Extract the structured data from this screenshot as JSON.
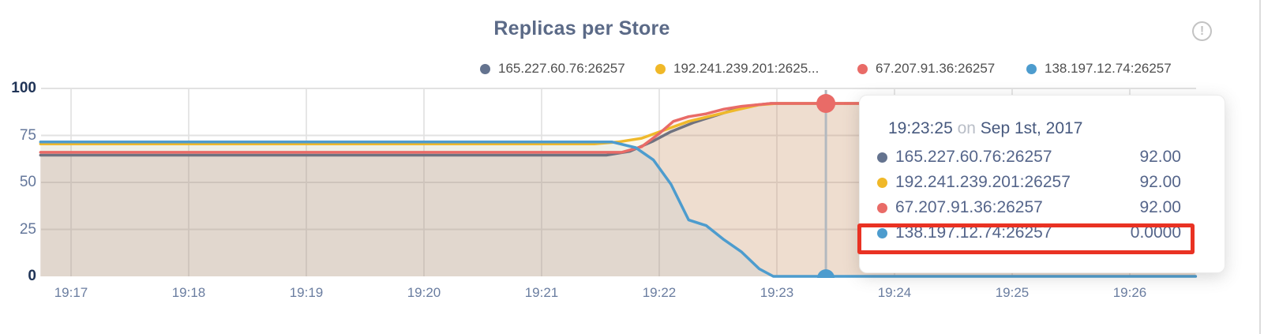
{
  "title": "Replicas per Store",
  "info_icon_glyph": "!",
  "legend": [
    {
      "label": "165.227.60.76:26257"
    },
    {
      "label": "192.241.239.201:2625..."
    },
    {
      "label": "67.207.91.36:26257"
    },
    {
      "label": "138.197.12.74:26257"
    }
  ],
  "tooltip": {
    "time": "19:23:25",
    "conjunction": "on",
    "date": "Sep 1st, 2017",
    "rows": [
      {
        "name": "165.227.60.76:26257",
        "value": "92.00"
      },
      {
        "name": "192.241.239.201:26257",
        "value": "92.00"
      },
      {
        "name": "67.207.91.36:26257",
        "value": "92.00"
      },
      {
        "name": "138.197.12.74:26257",
        "value": "0.0000"
      }
    ],
    "highlighted_row": 3,
    "highlight_color": "#e93223"
  },
  "chart_data": {
    "type": "area",
    "title": "Replicas per Store",
    "xlabel": "",
    "ylabel": "",
    "ylim": [
      0,
      100
    ],
    "y_ticks": [
      0,
      25,
      50,
      75,
      100
    ],
    "x_ticks": [
      {
        "label": "19:17",
        "t": 17
      },
      {
        "label": "19:18",
        "t": 18
      },
      {
        "label": "19:19",
        "t": 19
      },
      {
        "label": "19:20",
        "t": 20
      },
      {
        "label": "19:21",
        "t": 21
      },
      {
        "label": "19:22",
        "t": 22
      },
      {
        "label": "19:23",
        "t": 23
      },
      {
        "label": "19:24",
        "t": 24
      },
      {
        "label": "19:25",
        "t": 25
      },
      {
        "label": "19:26",
        "t": 26
      }
    ],
    "grid": true,
    "legend_position": "top",
    "series": [
      {
        "name": "165.227.60.76:26257",
        "color": "#6F7280",
        "dot_color": "#64738F",
        "fill": "rgba(110,114,128,0.10)",
        "points": [
          [
            16.74,
            64.5
          ],
          [
            21.55,
            64.5
          ],
          [
            21.75,
            66.5
          ],
          [
            21.95,
            72
          ],
          [
            22.1,
            77
          ],
          [
            22.3,
            82
          ],
          [
            22.5,
            86
          ],
          [
            22.65,
            89
          ],
          [
            22.8,
            91
          ],
          [
            22.95,
            92
          ],
          [
            26.56,
            92
          ]
        ]
      },
      {
        "name": "192.241.239.201:26257",
        "color": "#EFB92B",
        "dot_color": "#F0B828",
        "fill": "rgba(239,185,43,0.10)",
        "points": [
          [
            16.74,
            70.5
          ],
          [
            21.45,
            70.5
          ],
          [
            21.65,
            71.5
          ],
          [
            21.85,
            73.5
          ],
          [
            22.05,
            78
          ],
          [
            22.25,
            82.5
          ],
          [
            22.45,
            85.5
          ],
          [
            22.65,
            88.5
          ],
          [
            22.85,
            91.3
          ],
          [
            23.0,
            92
          ],
          [
            26.56,
            92
          ]
        ]
      },
      {
        "name": "67.207.91.36:26257",
        "color": "#E96B67",
        "dot_color": "#E96B67",
        "fill": "rgba(233,107,103,0.11)",
        "points": [
          [
            16.74,
            66
          ],
          [
            21.68,
            66
          ],
          [
            21.85,
            69
          ],
          [
            22.0,
            76
          ],
          [
            22.12,
            82.5
          ],
          [
            22.25,
            85
          ],
          [
            22.4,
            86.5
          ],
          [
            22.55,
            89
          ],
          [
            22.7,
            90.5
          ],
          [
            22.95,
            92
          ],
          [
            26.56,
            92
          ]
        ]
      },
      {
        "name": "138.197.12.74:26257",
        "color": "#4D9CCE",
        "dot_color": "#4D9CCE",
        "fill": "rgba(77,156,206,0.08)",
        "points": [
          [
            16.74,
            71.5
          ],
          [
            21.6,
            71.5
          ],
          [
            21.8,
            68.5
          ],
          [
            21.95,
            62
          ],
          [
            22.1,
            49
          ],
          [
            22.25,
            30
          ],
          [
            22.4,
            27
          ],
          [
            22.55,
            19.5
          ],
          [
            22.7,
            13
          ],
          [
            22.85,
            4
          ],
          [
            22.97,
            0
          ],
          [
            26.56,
            0
          ]
        ]
      }
    ],
    "hover": {
      "t": 23.4167,
      "time_label": "19:23:25",
      "values": [
        92.0,
        92.0,
        92.0,
        0.0
      ],
      "top_dot_series": 2,
      "bottom_dot_series": 3
    }
  }
}
